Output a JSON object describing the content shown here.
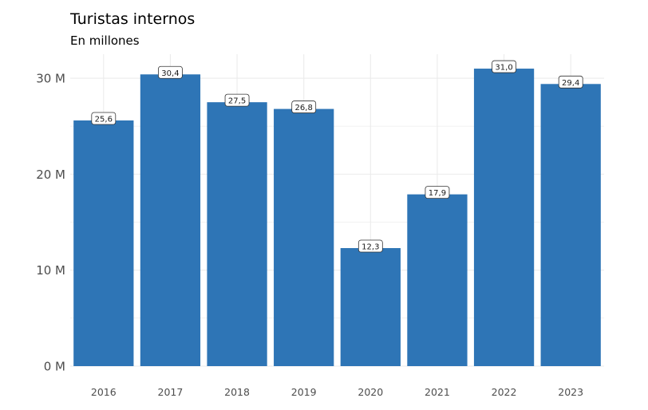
{
  "chart_data": {
    "type": "bar",
    "title": "Turistas internos",
    "subtitle": "En millones",
    "categories": [
      "2016",
      "2017",
      "2018",
      "2019",
      "2020",
      "2021",
      "2022",
      "2023"
    ],
    "values": [
      25.6,
      30.4,
      27.5,
      26.8,
      12.3,
      17.9,
      31.0,
      29.4
    ],
    "data_labels": [
      "25,6",
      "30,4",
      "27,5",
      "26,8",
      "12,3",
      "17,9",
      "31,0",
      "29,4"
    ],
    "yticks": [
      0,
      10,
      20,
      30
    ],
    "ytick_labels": [
      "0 M",
      "10 M",
      "20 M",
      "30 M"
    ],
    "ylim": [
      0,
      32.5
    ],
    "xlabel": "",
    "ylabel": "",
    "grid": true,
    "bar_color": "#2e75b6",
    "grid_color": "#ebebeb"
  }
}
